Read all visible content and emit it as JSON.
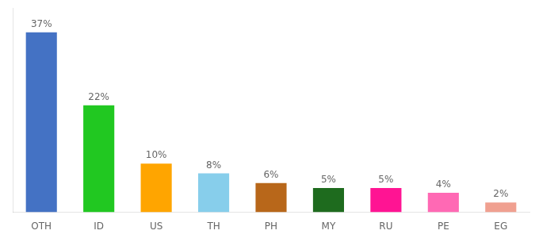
{
  "chart_data": {
    "type": "bar",
    "categories": [
      "OTH",
      "ID",
      "US",
      "TH",
      "PH",
      "MY",
      "RU",
      "PE",
      "EG"
    ],
    "values": [
      37,
      22,
      10,
      8,
      6,
      5,
      5,
      4,
      2
    ],
    "value_labels": [
      "37%",
      "22%",
      "10%",
      "8%",
      "6%",
      "5%",
      "5%",
      "4%",
      "2%"
    ],
    "colors": [
      "#4472C4",
      "#21C821",
      "#FFA500",
      "#87CEEB",
      "#B8671A",
      "#1E6B1E",
      "#FF1493",
      "#FF69B4",
      "#F0A090"
    ],
    "ylim": [
      0,
      42
    ],
    "data_labels": true,
    "tick_labels": "x",
    "grid": false
  }
}
